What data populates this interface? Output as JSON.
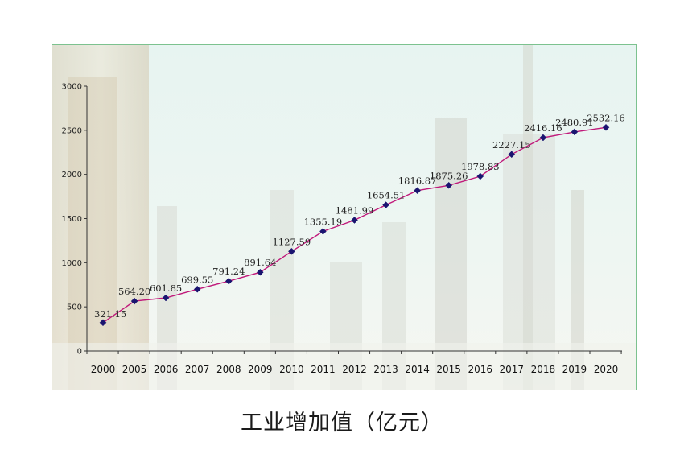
{
  "caption": "工业增加值（亿元）",
  "colors": {
    "line": "#c0187a",
    "marker": "#1a1470",
    "frame": "#7cc28f",
    "axis": "#333333"
  },
  "chart_data": {
    "type": "line",
    "title": "工业增加值（亿元）",
    "xlabel": "",
    "ylabel": "",
    "ylim": [
      0,
      3000
    ],
    "yticks": [
      0,
      500,
      1000,
      1500,
      2000,
      2500,
      3000
    ],
    "grid": false,
    "categories": [
      "2000",
      "2005",
      "2006",
      "2007",
      "2008",
      "2009",
      "2010",
      "2011",
      "2012",
      "2013",
      "2014",
      "2015",
      "2016",
      "2017",
      "2018",
      "2019",
      "2020"
    ],
    "series": [
      {
        "values": [
          321.15,
          564.2,
          601.85,
          699.55,
          791.24,
          891.64,
          1127.59,
          1355.19,
          1481.99,
          1654.51,
          1816.87,
          1875.26,
          1978.83,
          2227.15,
          2416.16,
          2480.91,
          2532.16
        ]
      }
    ],
    "labels": [
      "321.15",
      "564.20",
      "601.85",
      "699.55",
      "791.24",
      "891.64",
      "1127.59",
      "1355.19",
      "1481.99",
      "1654.51",
      "1816.87",
      "1875.26",
      "1978.83",
      "2227.15",
      "2416.16",
      "2480.91",
      "2532.16"
    ]
  }
}
